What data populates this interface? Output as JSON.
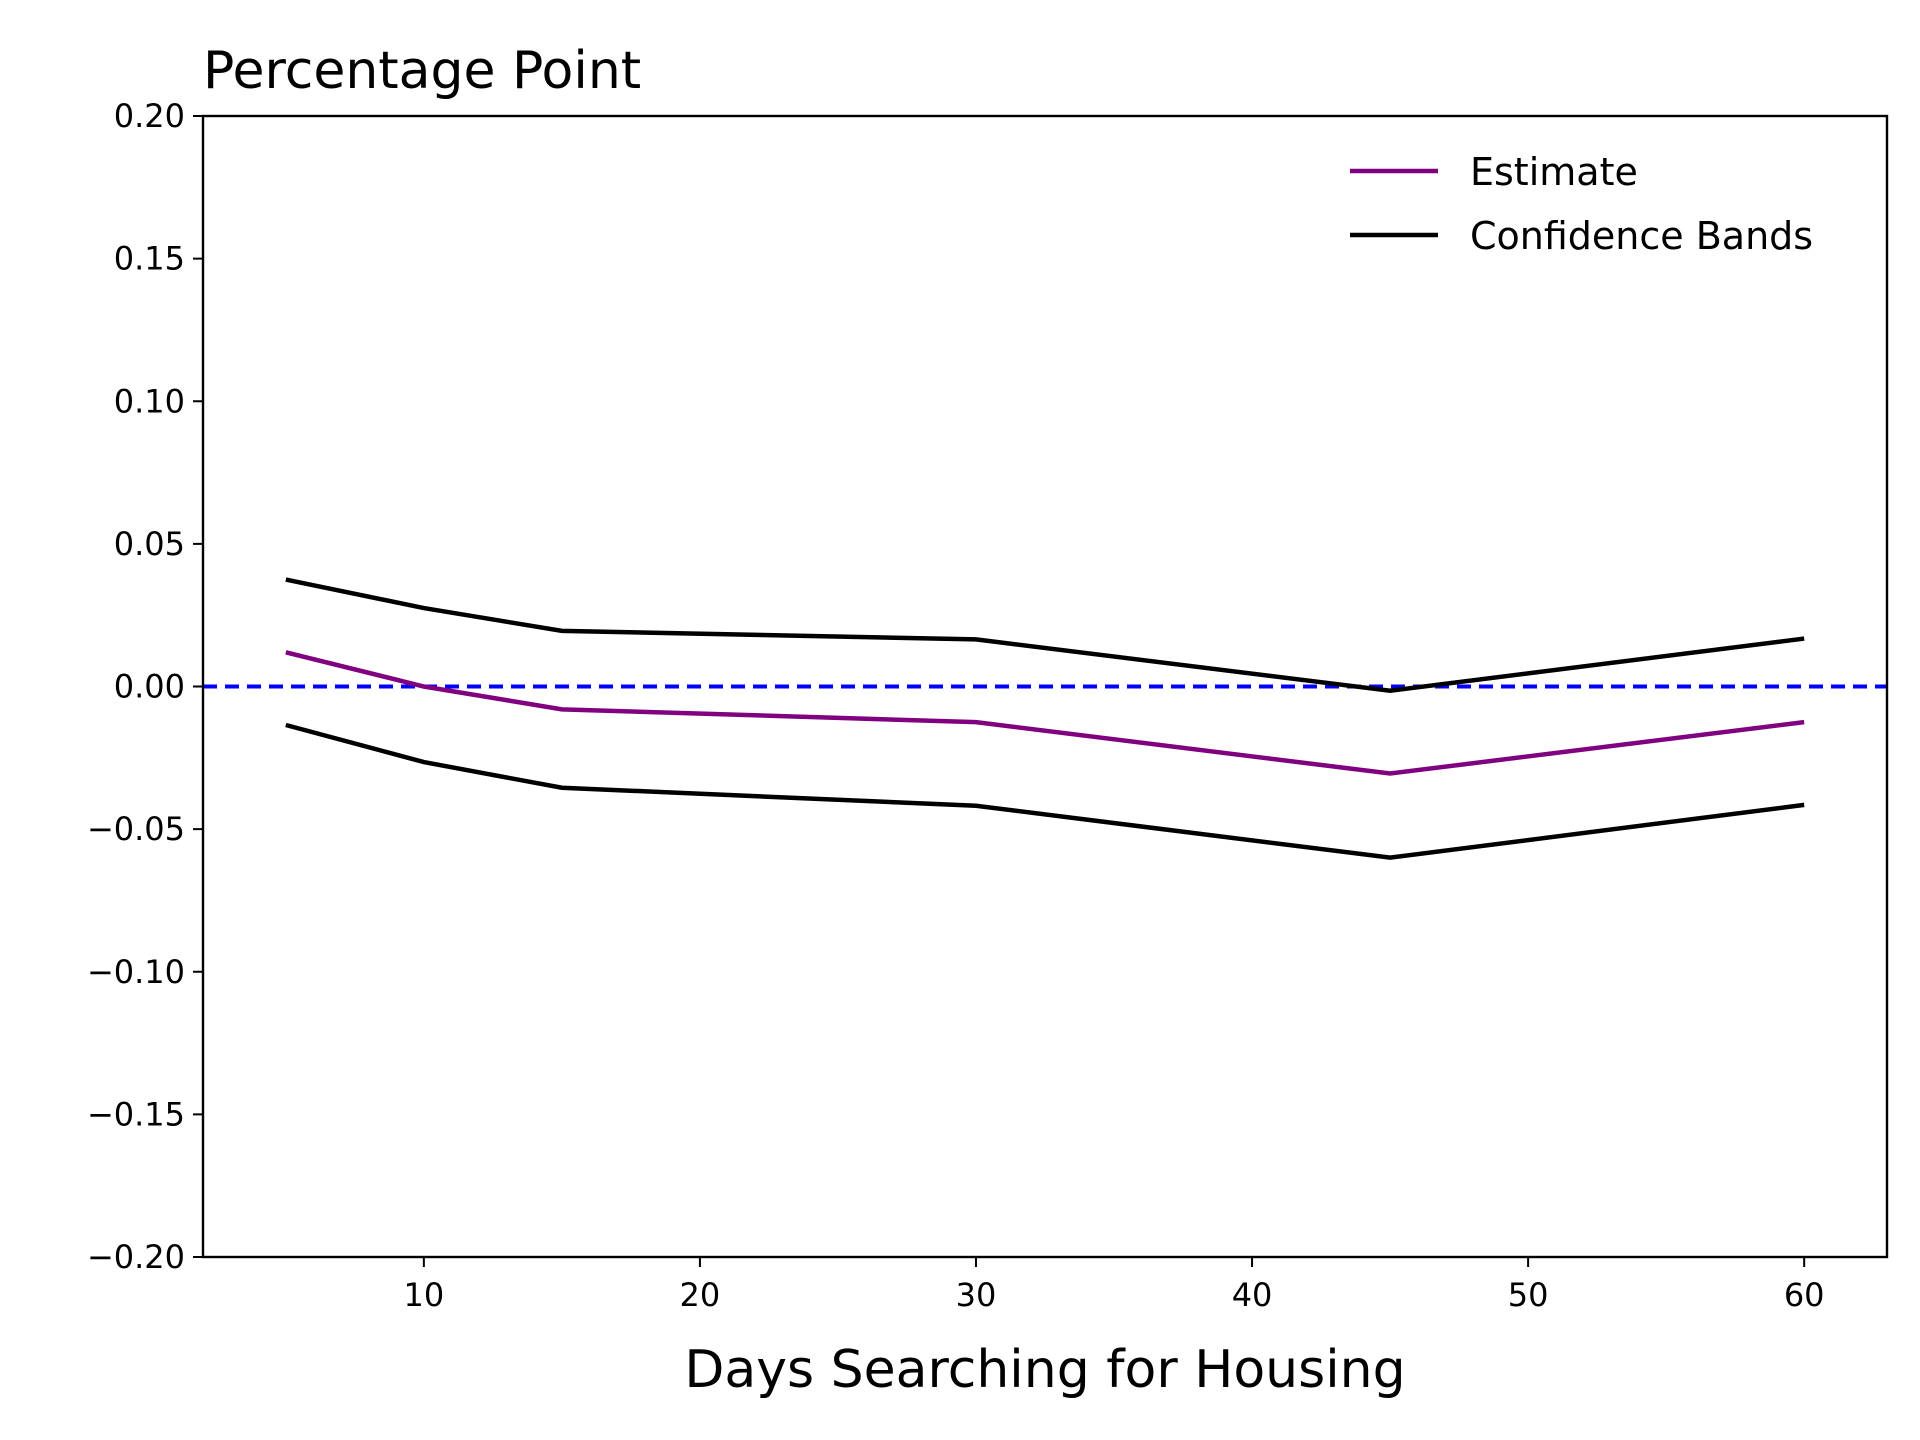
{
  "chart_data": {
    "type": "line",
    "ylabel": "Percentage Point",
    "xlabel": "Days Searching for Housing",
    "xlim": [
      2,
      63
    ],
    "ylim": [
      -0.2,
      0.2
    ],
    "x_ticks": [
      10,
      20,
      30,
      40,
      50,
      60
    ],
    "x_tick_labels": [
      "10",
      "20",
      "30",
      "40",
      "50",
      "60"
    ],
    "y_ticks": [
      0.2,
      0.15,
      0.1,
      0.05,
      0.0,
      -0.05,
      -0.1,
      -0.15,
      -0.2
    ],
    "y_tick_labels": [
      "0.20",
      "0.15",
      "0.10",
      "0.05",
      "0.00",
      "−0.05",
      "−0.10",
      "−0.15",
      "−0.20"
    ],
    "grid": false,
    "legend_position": "top-right",
    "x": [
      5,
      10,
      15,
      30,
      45,
      60
    ],
    "series": [
      {
        "name": "Estimate",
        "color": "#800080",
        "values": [
          0.012,
          0.0,
          -0.008,
          -0.0125,
          -0.0305,
          -0.0125
        ]
      },
      {
        "name": "Confidence Bands",
        "color": "#000000",
        "values": [
          0.0375,
          0.0275,
          0.0195,
          0.0165,
          -0.0015,
          0.0168
        ]
      },
      {
        "name": "",
        "color": "#000000",
        "values": [
          -0.0135,
          -0.0265,
          -0.0355,
          -0.0418,
          -0.06,
          -0.0415
        ]
      }
    ],
    "reference_line": {
      "y": 0,
      "color": "#0000ff",
      "style": "dashed"
    },
    "legend": [
      {
        "label": "Estimate",
        "color": "#800080"
      },
      {
        "label": "Confidence Bands",
        "color": "#000000"
      }
    ]
  }
}
